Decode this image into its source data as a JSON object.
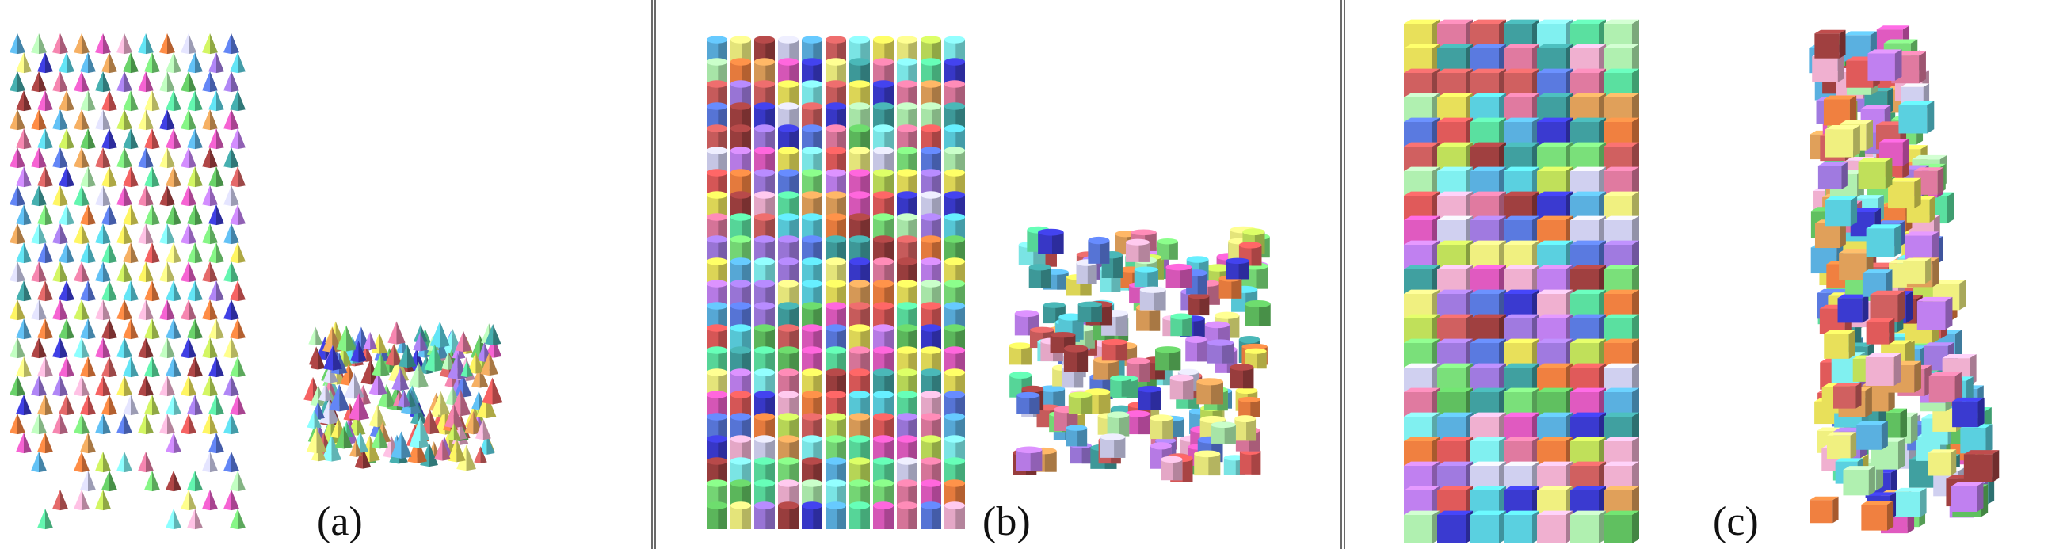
{
  "figure": {
    "panels": [
      {
        "label": "(a)",
        "shape": "cone",
        "states": [
          "stacked-column",
          "collapsed-pile"
        ]
      },
      {
        "label": "(b)",
        "shape": "cylinder",
        "states": [
          "stacked-column",
          "collapsed-pile"
        ]
      },
      {
        "label": "(c)",
        "shape": "cube",
        "states": [
          "stacked-column",
          "collapsed-pile"
        ]
      }
    ],
    "colors": [
      "#e8e05a",
      "#5ad0e0",
      "#e07aa0",
      "#7ae07a",
      "#a07ae0",
      "#e0a05a",
      "#5a7ae0",
      "#e05a5a",
      "#5ae0a0",
      "#c0e05a",
      "#e05ac0",
      "#5ab0e0",
      "#f0b0d0",
      "#b0f0b0",
      "#d0d0f0",
      "#3a3ad0",
      "#60c060",
      "#d06060",
      "#f0f080",
      "#80f0f0",
      "#c080f0",
      "#f08040",
      "#40a0a0",
      "#a04040"
    ]
  }
}
